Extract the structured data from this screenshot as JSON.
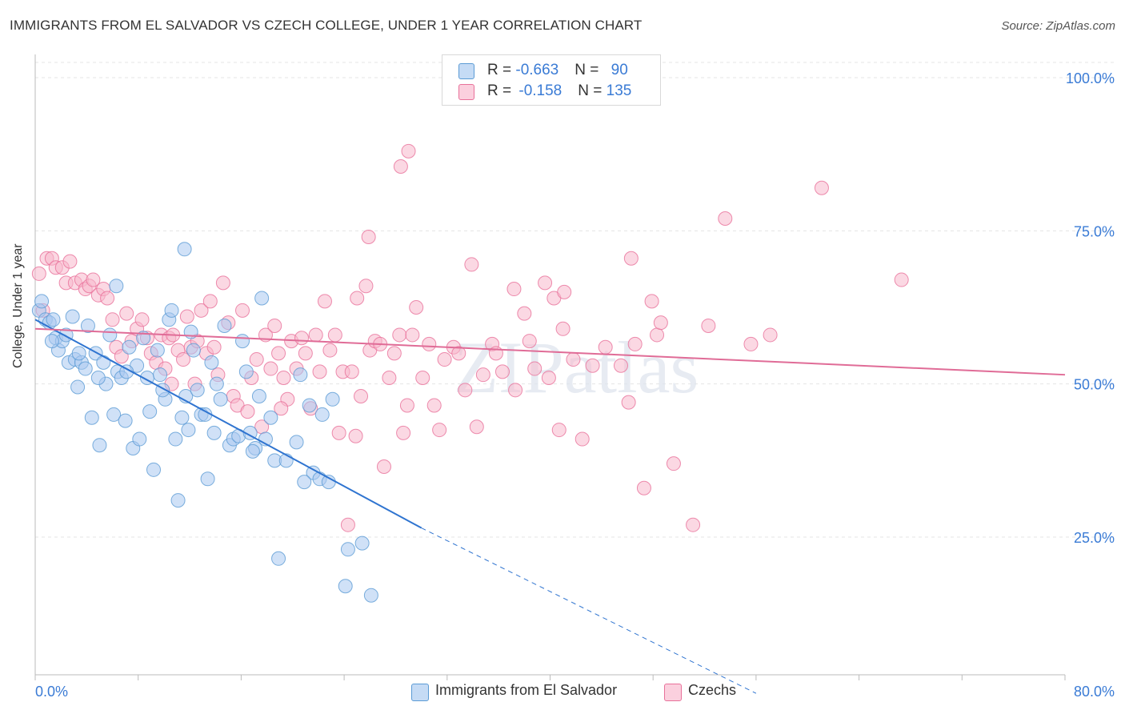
{
  "title": "IMMIGRANTS FROM EL SALVADOR VS CZECH COLLEGE, UNDER 1 YEAR CORRELATION CHART",
  "source": "Source: ZipAtlas.com",
  "watermark": "ZIPatlas",
  "legend_top": [
    {
      "r_label": "R = ",
      "r_value": "-0.663",
      "n_label": "N = ",
      "n_value": "90",
      "color": "#a9c8f0"
    },
    {
      "r_label": "R = ",
      "r_value": "-0.158",
      "n_label": "N = ",
      "n_value": "135",
      "color": "#f7b8cc"
    }
  ],
  "legend_bottom": [
    {
      "label": "Immigrants from El Salvador",
      "color": "#a9c8f0"
    },
    {
      "label": "Czechs",
      "color": "#f7b8cc"
    }
  ],
  "chart_data": {
    "type": "scatter",
    "xlabel": "",
    "ylabel": "College, Under 1 year",
    "xlim": [
      0,
      80
    ],
    "ylim": [
      0,
      105
    ],
    "x_tick_labels": [
      "0.0%",
      "80.0%"
    ],
    "y_ticks": [
      25,
      50,
      75,
      100
    ],
    "y_tick_labels": [
      "25.0%",
      "50.0%",
      "75.0%",
      "100.0%"
    ],
    "grid": true,
    "series": [
      {
        "name": "Immigrants from El Salvador",
        "color": "#5b9bd5",
        "fill": "#a9c8f0",
        "trendline": {
          "x": [
            0,
            30
          ],
          "y": [
            60.5,
            26.5
          ],
          "dashed_extension_to": [
            60,
            -8
          ]
        },
        "points": [
          [
            0.3,
            62
          ],
          [
            0.5,
            63.5
          ],
          [
            0.8,
            60.5
          ],
          [
            1.1,
            60
          ],
          [
            1.4,
            60.5
          ],
          [
            1.6,
            57.5
          ],
          [
            1.8,
            55.5
          ],
          [
            2.1,
            57
          ],
          [
            2.4,
            58
          ],
          [
            2.6,
            53.5
          ],
          [
            2.9,
            61
          ],
          [
            3.1,
            54
          ],
          [
            3.3,
            49.5
          ],
          [
            3.6,
            53.5
          ],
          [
            3.9,
            52.5
          ],
          [
            4.1,
            59.5
          ],
          [
            4.4,
            44.5
          ],
          [
            4.7,
            55
          ],
          [
            5.0,
            40
          ],
          [
            5.3,
            53.5
          ],
          [
            5.5,
            50
          ],
          [
            5.8,
            58
          ],
          [
            6.1,
            45
          ],
          [
            6.4,
            52
          ],
          [
            6.7,
            51
          ],
          [
            7.0,
            44
          ],
          [
            7.3,
            56
          ],
          [
            7.6,
            39.5
          ],
          [
            7.9,
            53
          ],
          [
            8.1,
            41
          ],
          [
            8.4,
            57.5
          ],
          [
            8.7,
            51
          ],
          [
            8.9,
            45.5
          ],
          [
            9.2,
            36
          ],
          [
            9.5,
            55.5
          ],
          [
            9.7,
            51.5
          ],
          [
            10.1,
            47.5
          ],
          [
            10.4,
            60.5
          ],
          [
            10.6,
            62
          ],
          [
            10.9,
            41
          ],
          [
            11.1,
            31
          ],
          [
            11.4,
            44.5
          ],
          [
            11.7,
            48
          ],
          [
            11.9,
            42.5
          ],
          [
            12.1,
            58.5
          ],
          [
            12.3,
            55.5
          ],
          [
            12.6,
            49
          ],
          [
            12.9,
            45
          ],
          [
            13.2,
            45
          ],
          [
            13.4,
            34.5
          ],
          [
            13.7,
            53.5
          ],
          [
            14.1,
            50
          ],
          [
            14.4,
            47.5
          ],
          [
            14.7,
            59.5
          ],
          [
            15.1,
            40
          ],
          [
            15.4,
            41
          ],
          [
            15.8,
            41.5
          ],
          [
            16.1,
            57
          ],
          [
            16.4,
            52
          ],
          [
            16.7,
            42
          ],
          [
            17.1,
            39.5
          ],
          [
            17.4,
            48
          ],
          [
            17.6,
            64
          ],
          [
            17.9,
            41
          ],
          [
            18.3,
            44.5
          ],
          [
            18.6,
            37.5
          ],
          [
            18.9,
            21.5
          ],
          [
            19.5,
            37.5
          ],
          [
            20.3,
            40.5
          ],
          [
            20.6,
            51.5
          ],
          [
            21.3,
            46.5
          ],
          [
            21.6,
            35.5
          ],
          [
            22.1,
            34.5
          ],
          [
            22.3,
            45
          ],
          [
            22.8,
            34
          ],
          [
            20.9,
            34
          ],
          [
            23.1,
            47.5
          ],
          [
            24.1,
            17
          ],
          [
            24.3,
            23
          ],
          [
            25.4,
            24
          ],
          [
            26.1,
            15.5
          ],
          [
            11.6,
            72
          ],
          [
            6.3,
            66
          ],
          [
            1.3,
            57
          ],
          [
            3.4,
            55
          ],
          [
            4.9,
            51
          ],
          [
            7.1,
            52
          ],
          [
            9.9,
            49
          ],
          [
            13.9,
            42
          ],
          [
            16.9,
            39
          ]
        ]
      },
      {
        "name": "Czechs",
        "color": "#e8719a",
        "fill": "#f7b8cc",
        "trendline": {
          "x": [
            0,
            80
          ],
          "y": [
            59,
            51.5
          ]
        },
        "points": [
          [
            0.3,
            68
          ],
          [
            0.6,
            62
          ],
          [
            0.9,
            70.5
          ],
          [
            1.3,
            70.5
          ],
          [
            1.6,
            69
          ],
          [
            2.1,
            69
          ],
          [
            2.4,
            66.5
          ],
          [
            2.7,
            70
          ],
          [
            3.1,
            66.5
          ],
          [
            3.6,
            67
          ],
          [
            3.9,
            65.5
          ],
          [
            4.2,
            66
          ],
          [
            4.5,
            67
          ],
          [
            4.9,
            64.5
          ],
          [
            5.3,
            65.5
          ],
          [
            5.6,
            64
          ],
          [
            6.0,
            60.5
          ],
          [
            6.3,
            56
          ],
          [
            6.7,
            54.5
          ],
          [
            7.1,
            61.5
          ],
          [
            7.5,
            57
          ],
          [
            7.9,
            59
          ],
          [
            8.3,
            60.5
          ],
          [
            8.7,
            57.5
          ],
          [
            9.0,
            55
          ],
          [
            9.4,
            53.5
          ],
          [
            9.8,
            58
          ],
          [
            10.1,
            52.5
          ],
          [
            10.4,
            57.5
          ],
          [
            10.7,
            58
          ],
          [
            11.1,
            55.5
          ],
          [
            11.5,
            54
          ],
          [
            11.8,
            61
          ],
          [
            12.1,
            56
          ],
          [
            12.6,
            57
          ],
          [
            12.9,
            62
          ],
          [
            13.3,
            55
          ],
          [
            13.6,
            63.5
          ],
          [
            13.9,
            56
          ],
          [
            14.2,
            51.5
          ],
          [
            14.6,
            66.5
          ],
          [
            15.0,
            60
          ],
          [
            15.4,
            48
          ],
          [
            15.7,
            46.5
          ],
          [
            16.1,
            62
          ],
          [
            16.5,
            45.5
          ],
          [
            16.8,
            51
          ],
          [
            17.2,
            54
          ],
          [
            17.6,
            43
          ],
          [
            17.9,
            58
          ],
          [
            18.3,
            52.5
          ],
          [
            18.6,
            59.5
          ],
          [
            18.9,
            55
          ],
          [
            19.3,
            51
          ],
          [
            19.6,
            47.5
          ],
          [
            19.9,
            57
          ],
          [
            20.3,
            52.5
          ],
          [
            20.7,
            57.5
          ],
          [
            21.0,
            55
          ],
          [
            21.4,
            46
          ],
          [
            21.8,
            58
          ],
          [
            22.1,
            52
          ],
          [
            22.5,
            63.5
          ],
          [
            22.9,
            55.5
          ],
          [
            23.3,
            58
          ],
          [
            23.6,
            42
          ],
          [
            23.9,
            52
          ],
          [
            24.3,
            27
          ],
          [
            24.6,
            52
          ],
          [
            25.0,
            64
          ],
          [
            25.3,
            48
          ],
          [
            25.7,
            66
          ],
          [
            26.0,
            55.5
          ],
          [
            26.4,
            57
          ],
          [
            26.8,
            56.5
          ],
          [
            27.1,
            36.5
          ],
          [
            27.5,
            51
          ],
          [
            27.9,
            55
          ],
          [
            28.3,
            58
          ],
          [
            28.6,
            42
          ],
          [
            28.9,
            46.5
          ],
          [
            29.3,
            58
          ],
          [
            29.6,
            62.5
          ],
          [
            30.1,
            51
          ],
          [
            30.6,
            56.5
          ],
          [
            31.0,
            46.5
          ],
          [
            31.4,
            42.5
          ],
          [
            31.8,
            54
          ],
          [
            32.5,
            56
          ],
          [
            32.9,
            55
          ],
          [
            33.4,
            49
          ],
          [
            33.9,
            69.5
          ],
          [
            34.3,
            43
          ],
          [
            34.8,
            51.5
          ],
          [
            35.5,
            56.5
          ],
          [
            36.3,
            52
          ],
          [
            37.2,
            65.5
          ],
          [
            38.0,
            61.5
          ],
          [
            38.4,
            57
          ],
          [
            38.8,
            52.5
          ],
          [
            39.6,
            66.5
          ],
          [
            40.3,
            64
          ],
          [
            40.7,
            42.5
          ],
          [
            41.1,
            65
          ],
          [
            41.8,
            54
          ],
          [
            42.5,
            41
          ],
          [
            43.3,
            53
          ],
          [
            45.5,
            53
          ],
          [
            46.1,
            47
          ],
          [
            46.6,
            56.5
          ],
          [
            47.3,
            33
          ],
          [
            47.9,
            63.5
          ],
          [
            48.3,
            58
          ],
          [
            48.6,
            60
          ],
          [
            49.6,
            37
          ],
          [
            51.1,
            27
          ],
          [
            52.3,
            59.5
          ],
          [
            53.6,
            77
          ],
          [
            55.6,
            56.5
          ],
          [
            57.1,
            58
          ],
          [
            61.1,
            82
          ],
          [
            67.3,
            67
          ],
          [
            29.0,
            88
          ],
          [
            28.4,
            85.5
          ],
          [
            25.9,
            74
          ],
          [
            46.3,
            70.5
          ],
          [
            41.0,
            59
          ],
          [
            35.8,
            55
          ],
          [
            37.3,
            49
          ],
          [
            39.9,
            51
          ],
          [
            44.3,
            56
          ],
          [
            12.4,
            50
          ],
          [
            10.6,
            50
          ],
          [
            19.1,
            46
          ],
          [
            24.9,
            41.5
          ]
        ]
      }
    ]
  }
}
